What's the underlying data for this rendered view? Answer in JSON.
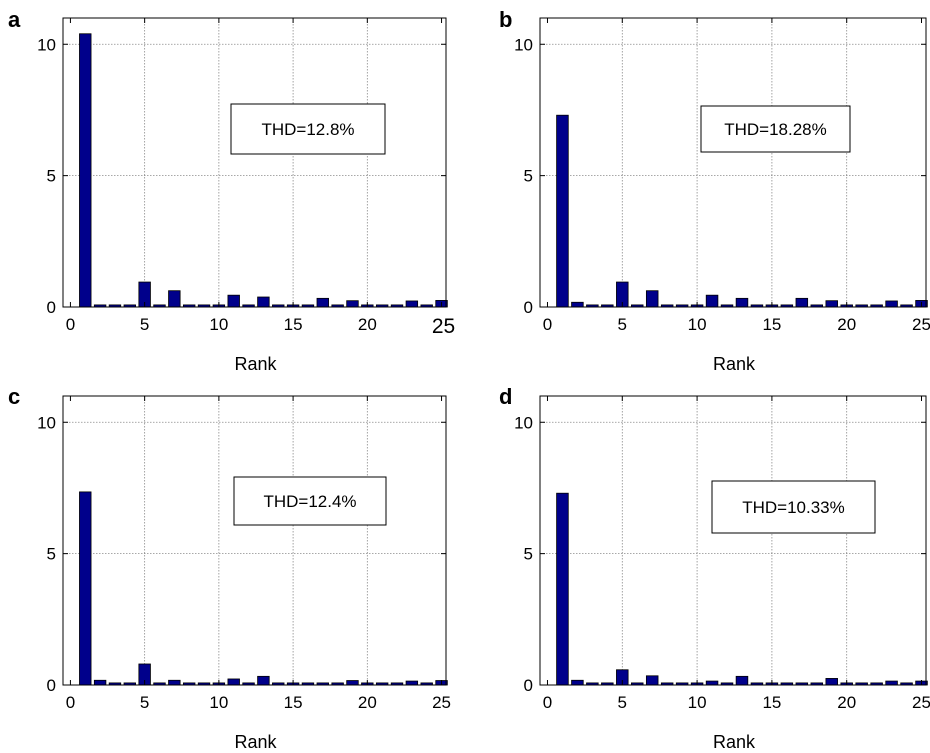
{
  "chart_data": [
    {
      "panel": "a",
      "type": "bar",
      "xlabel": "Rank",
      "ylabel": "",
      "xlim": [
        -0.5,
        25.3
      ],
      "ylim": [
        0,
        11
      ],
      "xticks": [
        0,
        5,
        10,
        15,
        20,
        25
      ],
      "xtick_labels": [
        "0",
        "5",
        "10",
        "15",
        "20",
        "25"
      ],
      "yticks": [
        0,
        5,
        10
      ],
      "ytick_labels": [
        "0",
        "5",
        "10"
      ],
      "grid": true,
      "bar_color": "#00008b",
      "annotation": "THD=12.8%",
      "x": [
        1,
        2,
        3,
        4,
        5,
        6,
        7,
        8,
        9,
        10,
        11,
        12,
        13,
        14,
        15,
        16,
        17,
        18,
        19,
        20,
        21,
        22,
        23,
        24,
        25
      ],
      "values": [
        10.4,
        0.08,
        0.08,
        0.08,
        0.95,
        0.08,
        0.62,
        0.08,
        0.08,
        0.08,
        0.45,
        0.08,
        0.38,
        0.08,
        0.08,
        0.08,
        0.33,
        0.08,
        0.24,
        0.08,
        0.08,
        0.08,
        0.23,
        0.08,
        0.25
      ]
    },
    {
      "panel": "b",
      "type": "bar",
      "xlabel": "Rank",
      "ylabel": "",
      "xlim": [
        -0.5,
        25.3
      ],
      "ylim": [
        0,
        11
      ],
      "xticks": [
        0,
        5,
        10,
        15,
        20,
        25
      ],
      "xtick_labels": [
        "0",
        "5",
        "10",
        "15",
        "20",
        "25"
      ],
      "yticks": [
        0,
        5,
        10
      ],
      "ytick_labels": [
        "0",
        "5",
        "10"
      ],
      "grid": true,
      "bar_color": "#00008b",
      "annotation": "THD=18.28%",
      "x": [
        1,
        2,
        3,
        4,
        5,
        6,
        7,
        8,
        9,
        10,
        11,
        12,
        13,
        14,
        15,
        16,
        17,
        18,
        19,
        20,
        21,
        22,
        23,
        24,
        25
      ],
      "values": [
        7.3,
        0.18,
        0.08,
        0.08,
        0.95,
        0.08,
        0.62,
        0.08,
        0.08,
        0.08,
        0.45,
        0.08,
        0.33,
        0.08,
        0.08,
        0.08,
        0.33,
        0.08,
        0.24,
        0.08,
        0.08,
        0.08,
        0.23,
        0.08,
        0.25
      ]
    },
    {
      "panel": "c",
      "type": "bar",
      "xlabel": "Rank",
      "ylabel": "",
      "xlim": [
        -0.5,
        25.3
      ],
      "ylim": [
        0,
        11
      ],
      "xticks": [
        0,
        5,
        10,
        15,
        20,
        25
      ],
      "xtick_labels": [
        "0",
        "5",
        "10",
        "15",
        "20",
        "25"
      ],
      "yticks": [
        0,
        5,
        10
      ],
      "ytick_labels": [
        "0",
        "5",
        "10"
      ],
      "grid": true,
      "bar_color": "#00008b",
      "annotation": "THD=12.4%",
      "x": [
        1,
        2,
        3,
        4,
        5,
        6,
        7,
        8,
        9,
        10,
        11,
        12,
        13,
        14,
        15,
        16,
        17,
        18,
        19,
        20,
        21,
        22,
        23,
        24,
        25
      ],
      "values": [
        7.35,
        0.18,
        0.08,
        0.08,
        0.8,
        0.08,
        0.18,
        0.08,
        0.08,
        0.08,
        0.23,
        0.08,
        0.33,
        0.08,
        0.08,
        0.08,
        0.08,
        0.08,
        0.17,
        0.08,
        0.08,
        0.08,
        0.15,
        0.08,
        0.17
      ]
    },
    {
      "panel": "d",
      "type": "bar",
      "xlabel": "Rank",
      "ylabel": "",
      "xlim": [
        -0.5,
        25.3
      ],
      "ylim": [
        0,
        11
      ],
      "xticks": [
        0,
        5,
        10,
        15,
        20,
        25
      ],
      "xtick_labels": [
        "0",
        "5",
        "10",
        "15",
        "20",
        "25"
      ],
      "yticks": [
        0,
        5,
        10
      ],
      "ytick_labels": [
        "0",
        "5",
        "10"
      ],
      "grid": true,
      "bar_color": "#00008b",
      "annotation": "THD=10.33%",
      "x": [
        1,
        2,
        3,
        4,
        5,
        6,
        7,
        8,
        9,
        10,
        11,
        12,
        13,
        14,
        15,
        16,
        17,
        18,
        19,
        20,
        21,
        22,
        23,
        24,
        25
      ],
      "values": [
        7.3,
        0.18,
        0.08,
        0.08,
        0.58,
        0.08,
        0.35,
        0.08,
        0.08,
        0.08,
        0.15,
        0.08,
        0.33,
        0.08,
        0.08,
        0.08,
        0.08,
        0.08,
        0.25,
        0.08,
        0.08,
        0.08,
        0.15,
        0.08,
        0.15
      ]
    }
  ]
}
